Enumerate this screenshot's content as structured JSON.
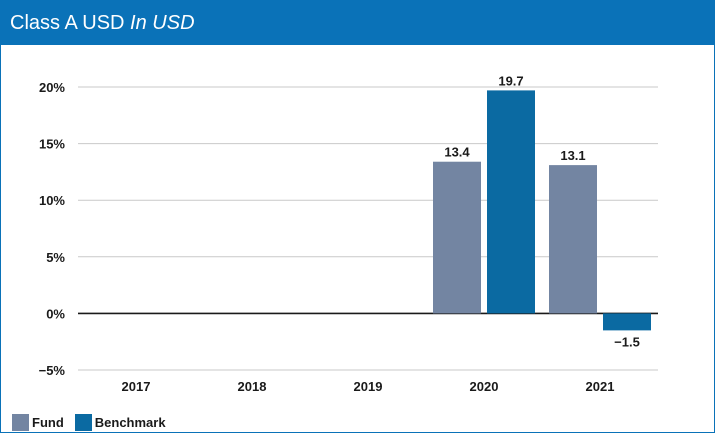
{
  "header": {
    "title": "Class A USD",
    "subtitle": "In USD"
  },
  "chart_data": {
    "type": "bar",
    "categories": [
      "2017",
      "2018",
      "2019",
      "2020",
      "2021"
    ],
    "series": [
      {
        "name": "Fund",
        "color": "#7385a2",
        "values": [
          null,
          null,
          null,
          13.4,
          13.1
        ]
      },
      {
        "name": "Benchmark",
        "color": "#0b6aa2",
        "values": [
          null,
          null,
          null,
          19.7,
          -1.5
        ]
      }
    ],
    "value_labels": {
      "Fund": [
        "",
        "",
        "",
        "13.4",
        "13.1"
      ],
      "Benchmark": [
        "",
        "",
        "",
        "19.7",
        "−1.5"
      ]
    },
    "ylim": [
      -5,
      20
    ],
    "yticks": [
      20,
      15,
      10,
      5,
      0,
      -5
    ],
    "ytick_labels": [
      "20%",
      "15%",
      "10%",
      "5%",
      "0%",
      "−5%"
    ],
    "grid": true,
    "legend_position": "bottom-left"
  }
}
